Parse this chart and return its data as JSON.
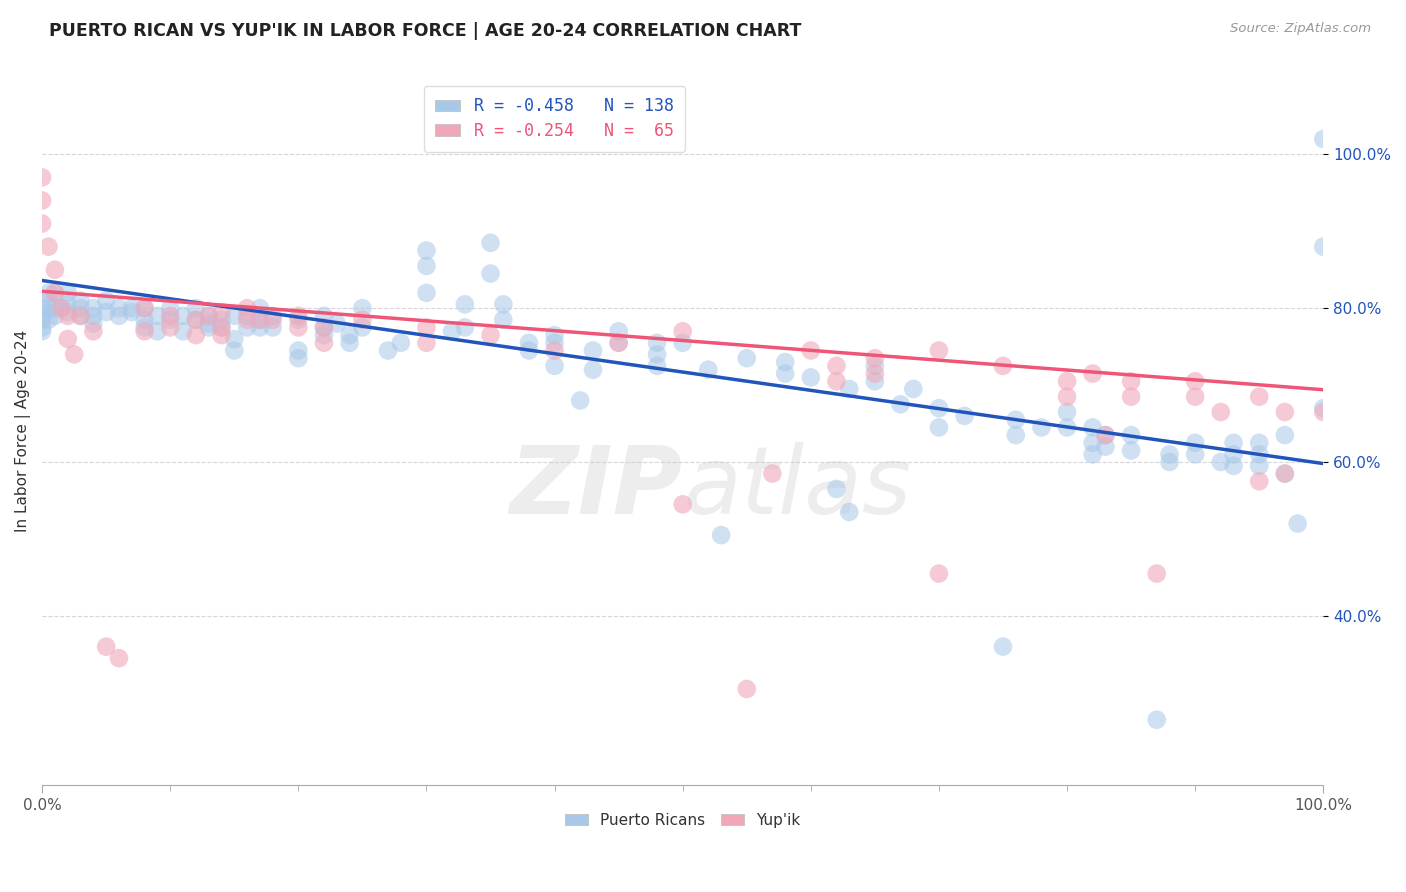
{
  "title": "PUERTO RICAN VS YUP'IK IN LABOR FORCE | AGE 20-24 CORRELATION CHART",
  "source": "Source: ZipAtlas.com",
  "ylabel": "In Labor Force | Age 20-24",
  "xlim": [
    0.0,
    1.0
  ],
  "ylim": [
    0.18,
    1.1
  ],
  "legend_blue_label": "R = -0.458   N = 138",
  "legend_pink_label": "R = -0.254   N =  65",
  "legend_bottom_blue": "Puerto Ricans",
  "legend_bottom_pink": "Yup'ik",
  "blue_color": "#A8C8E8",
  "pink_color": "#F0A8B8",
  "blue_line_color": "#2255BB",
  "pink_line_color": "#EE5577",
  "watermark": "ZIPatlas",
  "yticks": [
    0.4,
    0.6,
    0.8,
    1.0
  ],
  "ytick_labels": [
    "40.0%",
    "60.0%",
    "80.0%",
    "100.0%"
  ],
  "blue_scatter": [
    [
      0.0,
      0.8
    ],
    [
      0.0,
      0.79
    ],
    [
      0.0,
      0.785
    ],
    [
      0.0,
      0.775
    ],
    [
      0.0,
      0.77
    ],
    [
      0.005,
      0.82
    ],
    [
      0.005,
      0.81
    ],
    [
      0.005,
      0.8
    ],
    [
      0.005,
      0.785
    ],
    [
      0.01,
      0.82
    ],
    [
      0.01,
      0.8
    ],
    [
      0.01,
      0.79
    ],
    [
      0.015,
      0.8
    ],
    [
      0.02,
      0.82
    ],
    [
      0.02,
      0.805
    ],
    [
      0.02,
      0.795
    ],
    [
      0.03,
      0.81
    ],
    [
      0.03,
      0.8
    ],
    [
      0.03,
      0.79
    ],
    [
      0.04,
      0.8
    ],
    [
      0.04,
      0.79
    ],
    [
      0.04,
      0.78
    ],
    [
      0.05,
      0.81
    ],
    [
      0.05,
      0.795
    ],
    [
      0.06,
      0.79
    ],
    [
      0.06,
      0.8
    ],
    [
      0.07,
      0.795
    ],
    [
      0.07,
      0.8
    ],
    [
      0.08,
      0.8
    ],
    [
      0.08,
      0.785
    ],
    [
      0.08,
      0.775
    ],
    [
      0.09,
      0.79
    ],
    [
      0.09,
      0.77
    ],
    [
      0.1,
      0.8
    ],
    [
      0.1,
      0.785
    ],
    [
      0.11,
      0.77
    ],
    [
      0.11,
      0.79
    ],
    [
      0.12,
      0.8
    ],
    [
      0.12,
      0.785
    ],
    [
      0.13,
      0.79
    ],
    [
      0.13,
      0.775
    ],
    [
      0.13,
      0.78
    ],
    [
      0.14,
      0.785
    ],
    [
      0.14,
      0.775
    ],
    [
      0.15,
      0.79
    ],
    [
      0.15,
      0.76
    ],
    [
      0.15,
      0.745
    ],
    [
      0.16,
      0.79
    ],
    [
      0.16,
      0.775
    ],
    [
      0.17,
      0.8
    ],
    [
      0.17,
      0.785
    ],
    [
      0.17,
      0.775
    ],
    [
      0.18,
      0.79
    ],
    [
      0.18,
      0.775
    ],
    [
      0.2,
      0.785
    ],
    [
      0.2,
      0.745
    ],
    [
      0.2,
      0.735
    ],
    [
      0.22,
      0.79
    ],
    [
      0.22,
      0.775
    ],
    [
      0.22,
      0.765
    ],
    [
      0.23,
      0.78
    ],
    [
      0.24,
      0.765
    ],
    [
      0.24,
      0.755
    ],
    [
      0.25,
      0.8
    ],
    [
      0.25,
      0.775
    ],
    [
      0.27,
      0.745
    ],
    [
      0.28,
      0.755
    ],
    [
      0.3,
      0.875
    ],
    [
      0.3,
      0.855
    ],
    [
      0.3,
      0.82
    ],
    [
      0.32,
      0.77
    ],
    [
      0.33,
      0.805
    ],
    [
      0.33,
      0.775
    ],
    [
      0.35,
      0.885
    ],
    [
      0.35,
      0.845
    ],
    [
      0.36,
      0.805
    ],
    [
      0.36,
      0.785
    ],
    [
      0.38,
      0.755
    ],
    [
      0.38,
      0.745
    ],
    [
      0.4,
      0.765
    ],
    [
      0.4,
      0.755
    ],
    [
      0.4,
      0.725
    ],
    [
      0.42,
      0.68
    ],
    [
      0.43,
      0.745
    ],
    [
      0.43,
      0.72
    ],
    [
      0.45,
      0.77
    ],
    [
      0.45,
      0.755
    ],
    [
      0.48,
      0.755
    ],
    [
      0.48,
      0.74
    ],
    [
      0.48,
      0.725
    ],
    [
      0.5,
      0.755
    ],
    [
      0.52,
      0.72
    ],
    [
      0.53,
      0.505
    ],
    [
      0.55,
      0.735
    ],
    [
      0.58,
      0.73
    ],
    [
      0.58,
      0.715
    ],
    [
      0.6,
      0.71
    ],
    [
      0.62,
      0.565
    ],
    [
      0.63,
      0.695
    ],
    [
      0.63,
      0.535
    ],
    [
      0.65,
      0.725
    ],
    [
      0.65,
      0.705
    ],
    [
      0.67,
      0.675
    ],
    [
      0.68,
      0.695
    ],
    [
      0.7,
      0.67
    ],
    [
      0.7,
      0.645
    ],
    [
      0.72,
      0.66
    ],
    [
      0.75,
      0.36
    ],
    [
      0.76,
      0.655
    ],
    [
      0.76,
      0.635
    ],
    [
      0.78,
      0.645
    ],
    [
      0.8,
      0.665
    ],
    [
      0.8,
      0.645
    ],
    [
      0.82,
      0.645
    ],
    [
      0.82,
      0.625
    ],
    [
      0.82,
      0.61
    ],
    [
      0.83,
      0.635
    ],
    [
      0.83,
      0.62
    ],
    [
      0.85,
      0.635
    ],
    [
      0.85,
      0.615
    ],
    [
      0.87,
      0.265
    ],
    [
      0.88,
      0.61
    ],
    [
      0.88,
      0.6
    ],
    [
      0.9,
      0.625
    ],
    [
      0.9,
      0.61
    ],
    [
      0.92,
      0.6
    ],
    [
      0.93,
      0.625
    ],
    [
      0.93,
      0.61
    ],
    [
      0.93,
      0.595
    ],
    [
      0.95,
      0.625
    ],
    [
      0.95,
      0.61
    ],
    [
      0.95,
      0.595
    ],
    [
      0.97,
      0.635
    ],
    [
      0.97,
      0.585
    ],
    [
      0.98,
      0.52
    ],
    [
      1.0,
      1.02
    ],
    [
      1.0,
      0.88
    ],
    [
      1.0,
      0.67
    ]
  ],
  "pink_scatter": [
    [
      0.0,
      0.97
    ],
    [
      0.0,
      0.94
    ],
    [
      0.0,
      0.91
    ],
    [
      0.005,
      0.88
    ],
    [
      0.01,
      0.85
    ],
    [
      0.01,
      0.82
    ],
    [
      0.015,
      0.8
    ],
    [
      0.02,
      0.79
    ],
    [
      0.02,
      0.76
    ],
    [
      0.025,
      0.74
    ],
    [
      0.03,
      0.79
    ],
    [
      0.04,
      0.77
    ],
    [
      0.05,
      0.36
    ],
    [
      0.06,
      0.345
    ],
    [
      0.08,
      0.8
    ],
    [
      0.08,
      0.77
    ],
    [
      0.1,
      0.79
    ],
    [
      0.1,
      0.775
    ],
    [
      0.12,
      0.785
    ],
    [
      0.12,
      0.765
    ],
    [
      0.13,
      0.79
    ],
    [
      0.14,
      0.795
    ],
    [
      0.14,
      0.775
    ],
    [
      0.14,
      0.765
    ],
    [
      0.16,
      0.8
    ],
    [
      0.16,
      0.785
    ],
    [
      0.17,
      0.785
    ],
    [
      0.18,
      0.785
    ],
    [
      0.2,
      0.79
    ],
    [
      0.2,
      0.775
    ],
    [
      0.22,
      0.775
    ],
    [
      0.22,
      0.755
    ],
    [
      0.25,
      0.785
    ],
    [
      0.3,
      0.775
    ],
    [
      0.3,
      0.755
    ],
    [
      0.35,
      0.765
    ],
    [
      0.4,
      0.745
    ],
    [
      0.45,
      0.755
    ],
    [
      0.5,
      0.77
    ],
    [
      0.5,
      0.545
    ],
    [
      0.55,
      0.305
    ],
    [
      0.57,
      0.585
    ],
    [
      0.6,
      0.745
    ],
    [
      0.62,
      0.725
    ],
    [
      0.62,
      0.705
    ],
    [
      0.65,
      0.735
    ],
    [
      0.65,
      0.715
    ],
    [
      0.7,
      0.745
    ],
    [
      0.7,
      0.455
    ],
    [
      0.75,
      0.725
    ],
    [
      0.8,
      0.705
    ],
    [
      0.8,
      0.685
    ],
    [
      0.82,
      0.715
    ],
    [
      0.83,
      0.635
    ],
    [
      0.85,
      0.705
    ],
    [
      0.85,
      0.685
    ],
    [
      0.87,
      0.455
    ],
    [
      0.9,
      0.705
    ],
    [
      0.9,
      0.685
    ],
    [
      0.92,
      0.665
    ],
    [
      0.95,
      0.685
    ],
    [
      0.95,
      0.575
    ],
    [
      0.97,
      0.665
    ],
    [
      0.97,
      0.585
    ],
    [
      1.0,
      0.665
    ]
  ],
  "blue_line_x": [
    0.0,
    1.0
  ],
  "blue_line_y": [
    0.836,
    0.598
  ],
  "pink_line_x": [
    0.0,
    1.0
  ],
  "pink_line_y": [
    0.822,
    0.694
  ]
}
